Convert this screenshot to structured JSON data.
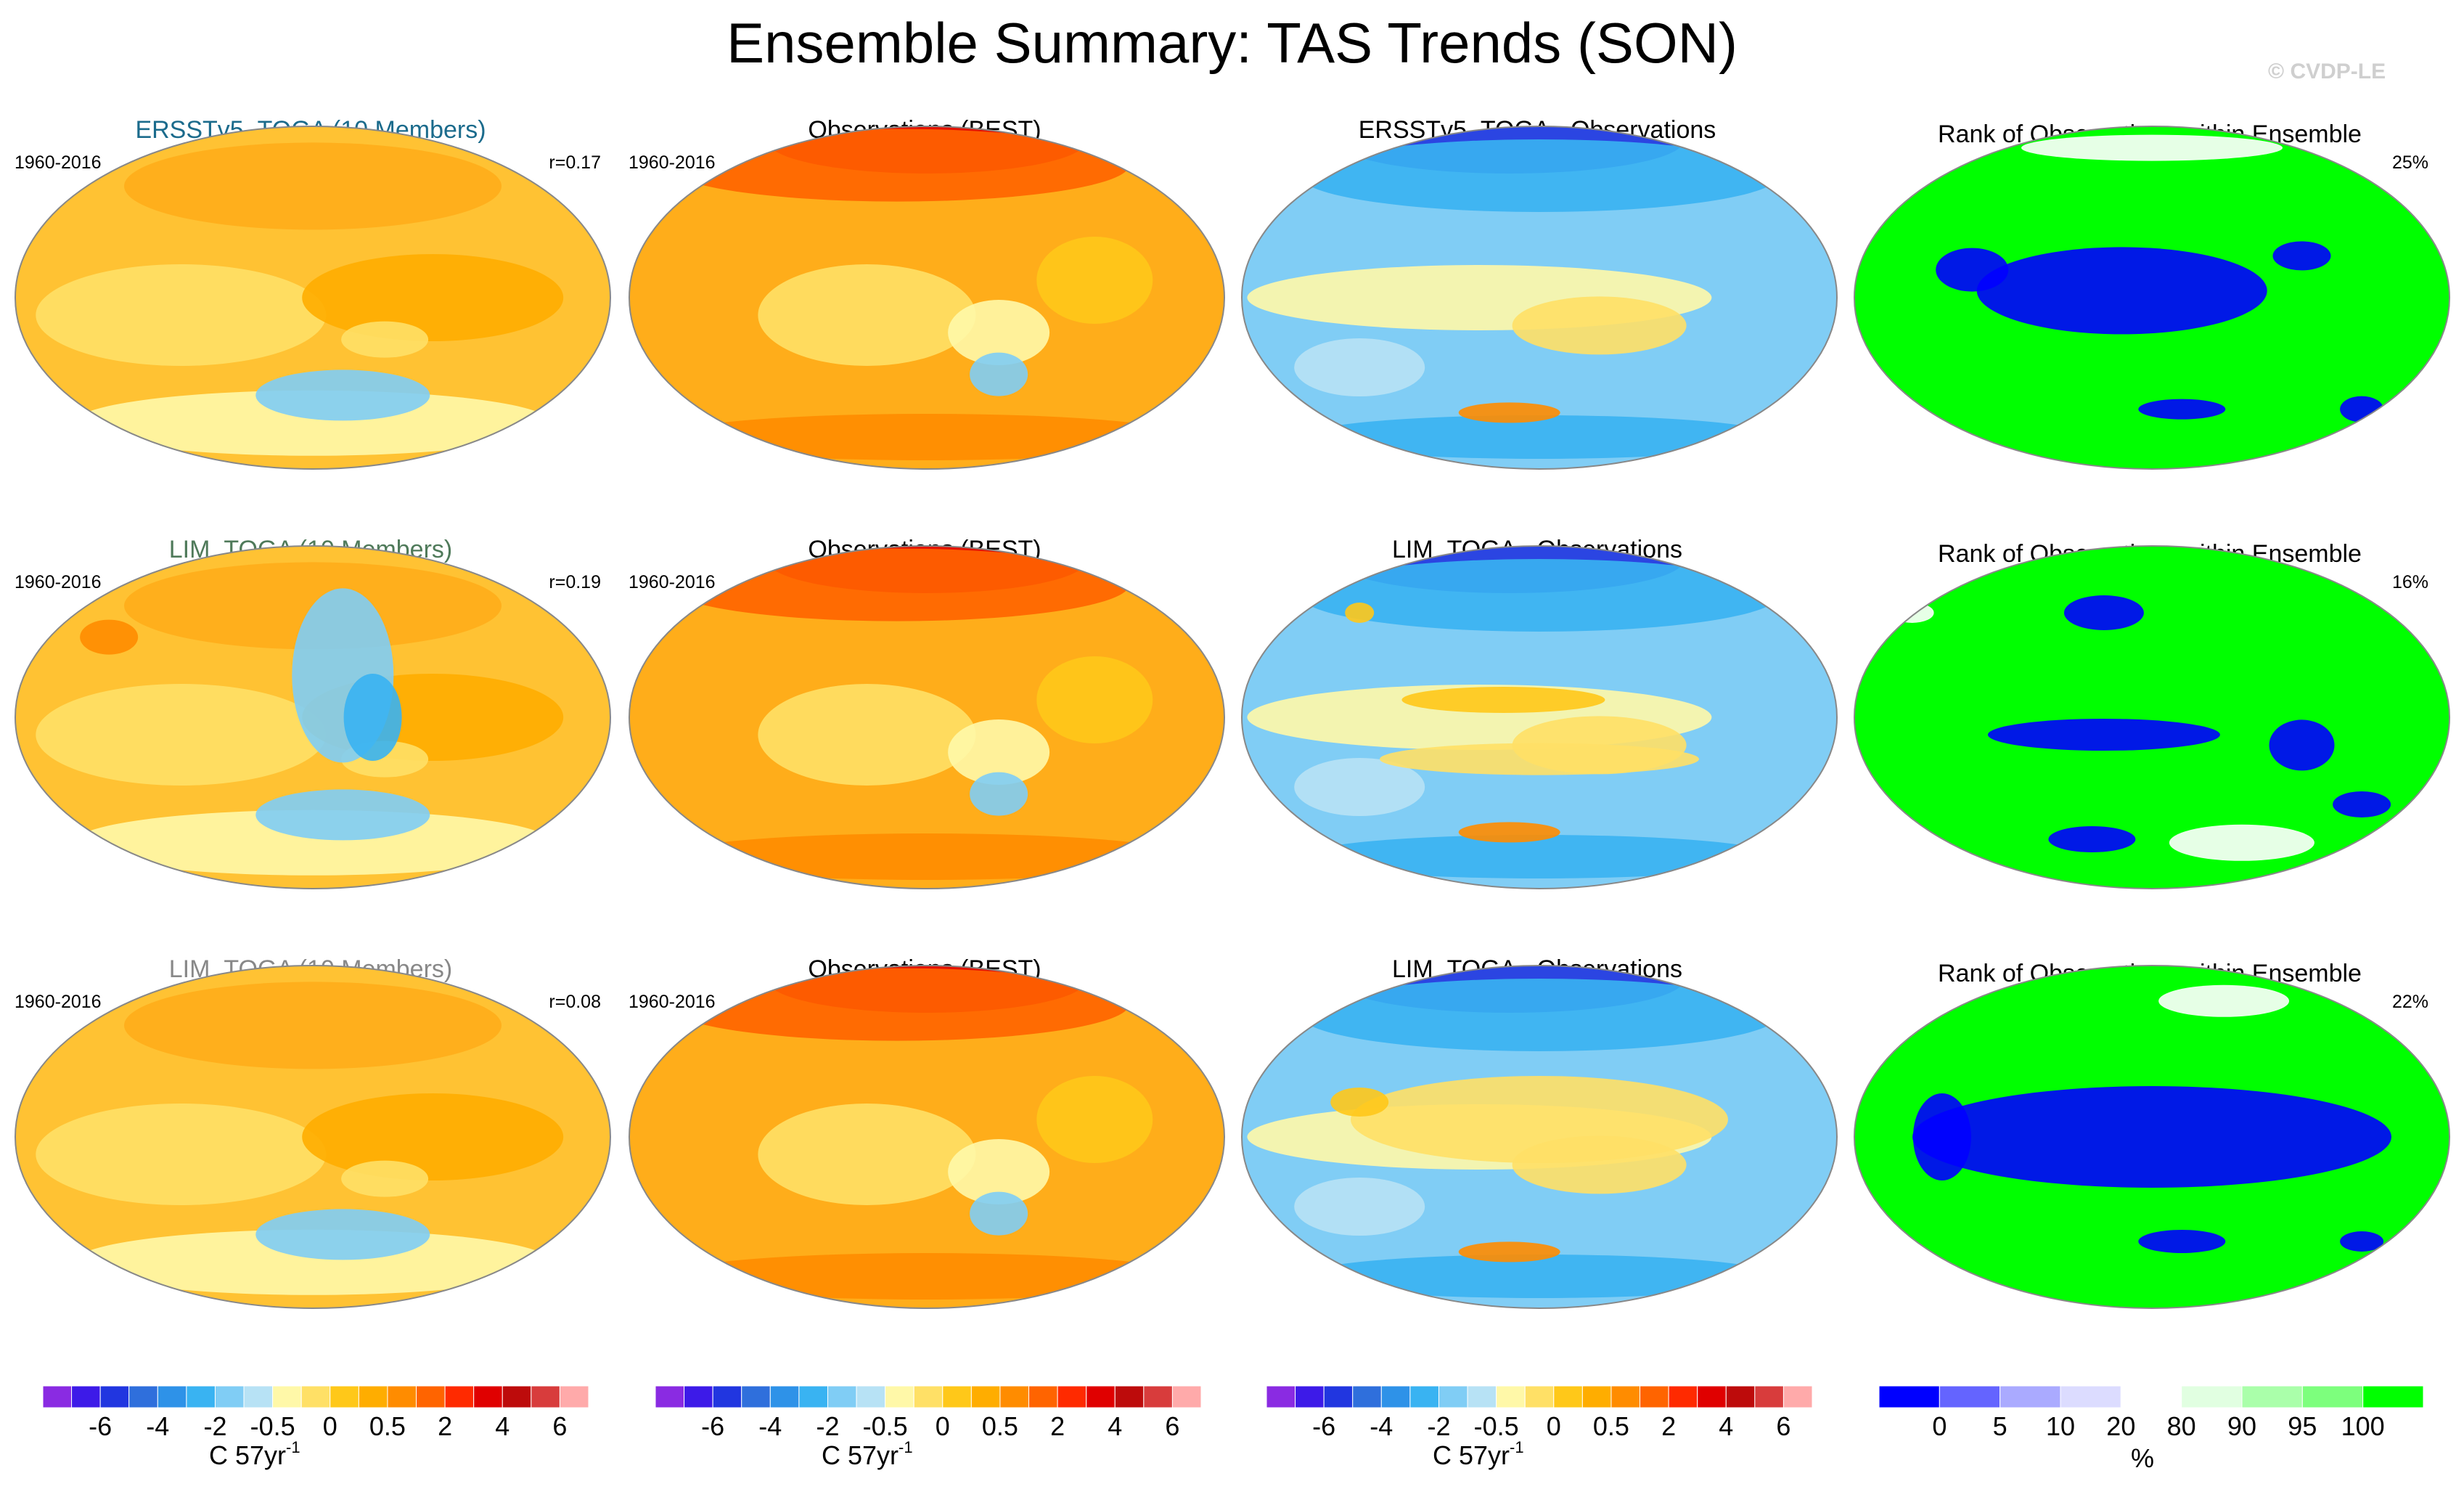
{
  "title": "Ensemble Summary: TAS Trends (SON)",
  "copyright": "© CVDP-LE",
  "colors": {
    "trend_levels": [
      "#8a2be2",
      "#3d1ae8",
      "#2136e0",
      "#2f6fdc",
      "#2e92e8",
      "#39b3f2",
      "#80cdf5",
      "#b7e2f5",
      "#fff8a8",
      "#ffe066",
      "#ffc819",
      "#ffad00",
      "#ff8c00",
      "#ff6400",
      "#ff2a00",
      "#e00000",
      "#bd0b0b",
      "#d83c3c",
      "#ffaaaa"
    ],
    "rank_levels": [
      "#0000ff",
      "#6464ff",
      "#aaaaff",
      "#dcdcff",
      "#ffffff",
      "#e1ffe1",
      "#aaffaa",
      "#7dff7d",
      "#00ff00"
    ]
  },
  "rows": [
    {
      "model_title": "ERSSTv5_TOGA (10 Members)",
      "model_title_color": "#1b6b8c",
      "period_left": "1960-2016",
      "corr": "r=0.17",
      "period_obs": "1960-2016",
      "obs_title": "Observations (BEST)",
      "diff_title": "ERSSTv5_TOGA - Observations",
      "rank_title": "Rank of Observations within Ensemble",
      "rank_pct": "25%"
    },
    {
      "model_title": "LIM_TOGA (10 Members)",
      "model_title_color": "#4f7a5a",
      "period_left": "1960-2016",
      "corr": "r=0.19",
      "period_obs": "1960-2016",
      "obs_title": "Observations (BEST)",
      "diff_title": "LIM_TOGA - Observations",
      "rank_title": "Rank of Observations within Ensemble",
      "rank_pct": "16%"
    },
    {
      "model_title": "LIM_TOGA (10 Members)",
      "model_title_color": "#888888",
      "period_left": "1960-2016",
      "corr": "r=0.08",
      "period_obs": "1960-2016",
      "obs_title": "Observations (BEST)",
      "diff_title": "LIM_TOGA - Observations",
      "rank_title": "Rank of Observations within Ensemble",
      "rank_pct": "22%"
    }
  ],
  "chart_data": [
    {
      "type": "heatmap",
      "name": "trend_colorbar",
      "levels": [
        -8,
        -7,
        -6,
        -5,
        -4,
        -3,
        -2,
        -1,
        -0.5,
        -0.2,
        0.2,
        0.5,
        1,
        2,
        3,
        4,
        5,
        6,
        7,
        8
      ],
      "tick_labels": [
        "-6",
        "-4",
        "-2",
        "-0.5",
        "0",
        "0.5",
        "2",
        "4",
        "6"
      ],
      "units": "C 57yr",
      "units_sup": "-1",
      "count": 3
    },
    {
      "type": "heatmap",
      "name": "rank_colorbar",
      "levels": [
        0,
        5,
        10,
        20,
        80,
        90,
        95,
        100
      ],
      "tick_labels": [
        "0",
        "5",
        "10",
        "20",
        "80",
        "90",
        "95",
        "100"
      ],
      "units": "%"
    }
  ]
}
